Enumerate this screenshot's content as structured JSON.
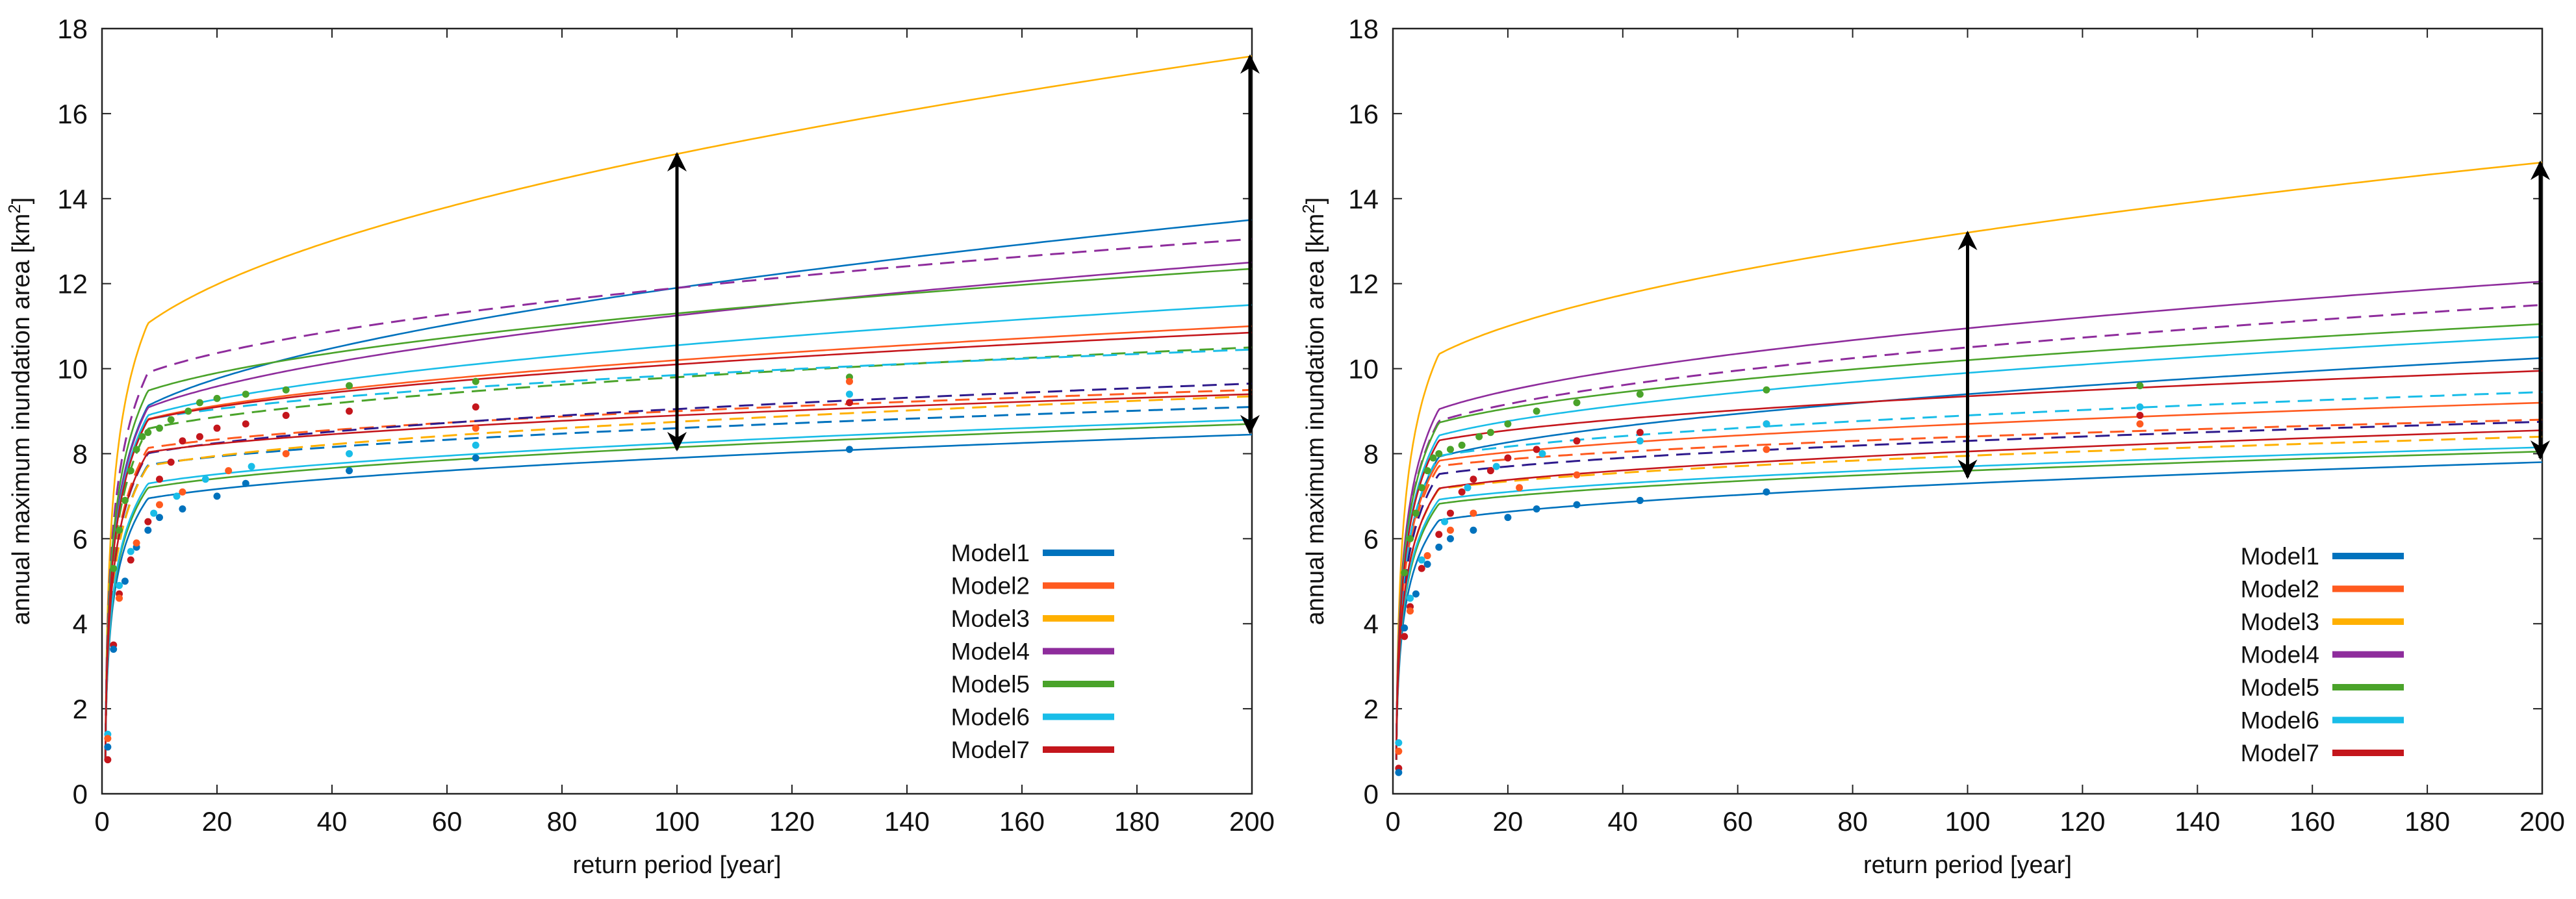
{
  "chart_data": [
    {
      "type": "line",
      "panel": "left",
      "xlabel": "return period [year]",
      "ylabel_main": "annual maximum inundation area [km",
      "ylabel_sup": "2",
      "ylabel_end": "]",
      "xlim": [
        0,
        200
      ],
      "ylim": [
        0,
        18
      ],
      "xticks": [
        "0",
        "20",
        "40",
        "60",
        "80",
        "100",
        "120",
        "140",
        "160",
        "180",
        "200"
      ],
      "yticks": [
        "0",
        "2",
        "4",
        "6",
        "8",
        "10",
        "12",
        "14",
        "16",
        "18"
      ],
      "legend": [
        {
          "label": "Model1",
          "color": "#0072bd"
        },
        {
          "label": "Model2",
          "color": "#ff5a1f"
        },
        {
          "label": "Model3",
          "color": "#ffb000"
        },
        {
          "label": "Model4",
          "color": "#8e2c9c"
        },
        {
          "label": "Model5",
          "color": "#4aa32a"
        },
        {
          "label": "Model6",
          "color": "#19bde8"
        },
        {
          "label": "Model7",
          "color": "#c4161c"
        }
      ],
      "series": [
        {
          "name": "Model1",
          "color": "#0072bd",
          "dash": false,
          "values_at_100_200": [
            11.9,
            13.5
          ]
        },
        {
          "name": "Model1",
          "color": "#0072bd",
          "dash": false,
          "values_at_100_200": [
            7.9,
            8.45
          ]
        },
        {
          "name": "Model1",
          "color": "#0072bd",
          "dash": true,
          "values_at_100_200": [
            8.6,
            9.1
          ]
        },
        {
          "name": "Model2",
          "color": "#ff5a1f",
          "dash": false,
          "values_at_100_200": [
            10.2,
            11.0
          ]
        },
        {
          "name": "Model2",
          "color": "#ff5a1f",
          "dash": true,
          "values_at_100_200": [
            9.0,
            9.5
          ]
        },
        {
          "name": "Model3",
          "color": "#ffb000",
          "dash": false,
          "values_at_100_200": [
            15.05,
            17.35
          ]
        },
        {
          "name": "Model3",
          "color": "#ffb000",
          "dash": true,
          "values_at_100_200": [
            8.75,
            9.35
          ]
        },
        {
          "name": "Model4",
          "color": "#8e2c9c",
          "dash": false,
          "values_at_100_200": [
            11.25,
            12.5
          ]
        },
        {
          "name": "Model4",
          "color": "#8e2c9c",
          "dash": true,
          "values_at_100_200": [
            11.9,
            13.05
          ]
        },
        {
          "name": "Model4",
          "color": "#2e1a8c",
          "dash": true,
          "values_at_100_200": [
            9.05,
            9.65
          ]
        },
        {
          "name": "Model5",
          "color": "#4aa32a",
          "dash": false,
          "values_at_100_200": [
            11.3,
            12.35
          ]
        },
        {
          "name": "Model5",
          "color": "#4aa32a",
          "dash": false,
          "values_at_100_200": [
            8.15,
            8.7
          ]
        },
        {
          "name": "Model5",
          "color": "#4aa32a",
          "dash": true,
          "values_at_100_200": [
            9.8,
            10.5
          ]
        },
        {
          "name": "Model6",
          "color": "#19bde8",
          "dash": false,
          "values_at_100_200": [
            10.55,
            11.5
          ]
        },
        {
          "name": "Model6",
          "color": "#19bde8",
          "dash": false,
          "values_at_100_200": [
            8.25,
            8.8
          ]
        },
        {
          "name": "Model6",
          "color": "#19bde8",
          "dash": true,
          "values_at_100_200": [
            9.85,
            10.45
          ]
        },
        {
          "name": "Model7",
          "color": "#c4161c",
          "dash": false,
          "values_at_100_200": [
            10.1,
            10.85
          ]
        },
        {
          "name": "Model7",
          "color": "#c4161c",
          "dash": false,
          "values_at_100_200": [
            8.9,
            9.4
          ]
        }
      ],
      "observed_points": [
        {
          "color": "#4aa32a",
          "points": [
            [
              2,
              5.3
            ],
            [
              3,
              6.2
            ],
            [
              4,
              6.9
            ],
            [
              5,
              7.6
            ],
            [
              6,
              8.1
            ],
            [
              7,
              8.4
            ],
            [
              8,
              8.5
            ],
            [
              10,
              8.6
            ],
            [
              12,
              8.8
            ],
            [
              15,
              9.0
            ],
            [
              17,
              9.2
            ],
            [
              20,
              9.3
            ],
            [
              25,
              9.4
            ],
            [
              32,
              9.5
            ],
            [
              43,
              9.6
            ],
            [
              65,
              9.7
            ],
            [
              130,
              9.8
            ]
          ]
        },
        {
          "color": "#c4161c",
          "points": [
            [
              1,
              0.8
            ],
            [
              2,
              3.5
            ],
            [
              3,
              4.7
            ],
            [
              5,
              5.5
            ],
            [
              8,
              6.4
            ],
            [
              10,
              7.4
            ],
            [
              12,
              7.8
            ],
            [
              14,
              8.3
            ],
            [
              17,
              8.4
            ],
            [
              20,
              8.6
            ],
            [
              25,
              8.7
            ],
            [
              32,
              8.9
            ],
            [
              43,
              9.0
            ],
            [
              65,
              9.1
            ],
            [
              130,
              9.2
            ]
          ]
        },
        {
          "color": "#0072bd",
          "points": [
            [
              1,
              1.1
            ],
            [
              2,
              3.4
            ],
            [
              4,
              5.0
            ],
            [
              6,
              5.8
            ],
            [
              8,
              6.2
            ],
            [
              10,
              6.5
            ],
            [
              14,
              6.7
            ],
            [
              20,
              7.0
            ],
            [
              25,
              7.3
            ],
            [
              43,
              7.6
            ],
            [
              65,
              7.9
            ],
            [
              130,
              8.1
            ]
          ]
        },
        {
          "color": "#19bde8",
          "points": [
            [
              1,
              1.4
            ],
            [
              3,
              4.9
            ],
            [
              5,
              5.7
            ],
            [
              9,
              6.6
            ],
            [
              13,
              7.0
            ],
            [
              18,
              7.4
            ],
            [
              26,
              7.7
            ],
            [
              43,
              8.0
            ],
            [
              65,
              8.2
            ],
            [
              130,
              9.4
            ]
          ]
        },
        {
          "color": "#ff5a1f",
          "points": [
            [
              1,
              1.3
            ],
            [
              3,
              4.6
            ],
            [
              6,
              5.9
            ],
            [
              10,
              6.8
            ],
            [
              14,
              7.1
            ],
            [
              22,
              7.6
            ],
            [
              32,
              8.0
            ],
            [
              65,
              8.6
            ],
            [
              130,
              9.7
            ]
          ]
        }
      ],
      "annotations": [
        {
          "type": "double-arrow",
          "x": 100,
          "y_range": [
            8.1,
            15.05
          ]
        },
        {
          "type": "double-arrow",
          "x": 200,
          "y_range": [
            8.5,
            17.35
          ]
        }
      ]
    },
    {
      "type": "line",
      "panel": "right",
      "xlabel": "return period [year]",
      "ylabel_main": "annual maximum inundation area [km",
      "ylabel_sup": "2",
      "ylabel_end": "]",
      "xlim": [
        0,
        200
      ],
      "ylim": [
        0,
        18
      ],
      "xticks": [
        "0",
        "20",
        "40",
        "60",
        "80",
        "100",
        "120",
        "140",
        "160",
        "180",
        "200"
      ],
      "yticks": [
        "0",
        "2",
        "4",
        "6",
        "8",
        "10",
        "12",
        "14",
        "16",
        "18"
      ],
      "legend": [
        {
          "label": "Model1",
          "color": "#0072bd"
        },
        {
          "label": "Model2",
          "color": "#ff5a1f"
        },
        {
          "label": "Model3",
          "color": "#ffb000"
        },
        {
          "label": "Model4",
          "color": "#8e2c9c"
        },
        {
          "label": "Model5",
          "color": "#4aa32a"
        },
        {
          "label": "Model6",
          "color": "#19bde8"
        },
        {
          "label": "Model7",
          "color": "#c4161c"
        }
      ],
      "series": [
        {
          "name": "Model1",
          "color": "#0072bd",
          "dash": false,
          "values_at_100_200": [
            9.4,
            10.25
          ]
        },
        {
          "name": "Model1",
          "color": "#0072bd",
          "dash": false,
          "values_at_100_200": [
            7.3,
            7.8
          ]
        },
        {
          "name": "Model2",
          "color": "#ff5a1f",
          "dash": false,
          "values_at_100_200": [
            8.7,
            9.2
          ]
        },
        {
          "name": "Model2",
          "color": "#ff5a1f",
          "dash": true,
          "values_at_100_200": [
            8.4,
            8.8
          ]
        },
        {
          "name": "Model3",
          "color": "#ffb000",
          "dash": false,
          "values_at_100_200": [
            13.2,
            14.85
          ]
        },
        {
          "name": "Model3",
          "color": "#ffb000",
          "dash": true,
          "values_at_100_200": [
            7.95,
            8.4
          ]
        },
        {
          "name": "Model4",
          "color": "#8e2c9c",
          "dash": false,
          "values_at_100_200": [
            10.95,
            12.05
          ]
        },
        {
          "name": "Model4",
          "color": "#8e2c9c",
          "dash": true,
          "values_at_100_200": [
            10.5,
            11.5
          ]
        },
        {
          "name": "Model4",
          "color": "#2e1a8c",
          "dash": true,
          "values_at_100_200": [
            8.3,
            8.75
          ]
        },
        {
          "name": "Model5",
          "color": "#4aa32a",
          "dash": false,
          "values_at_100_200": [
            10.2,
            11.05
          ]
        },
        {
          "name": "Model5",
          "color": "#4aa32a",
          "dash": false,
          "values_at_100_200": [
            7.6,
            8.05
          ]
        },
        {
          "name": "Model6",
          "color": "#19bde8",
          "dash": false,
          "values_at_100_200": [
            9.9,
            10.75
          ]
        },
        {
          "name": "Model6",
          "color": "#19bde8",
          "dash": false,
          "values_at_100_200": [
            7.7,
            8.15
          ]
        },
        {
          "name": "Model6",
          "color": "#19bde8",
          "dash": true,
          "values_at_100_200": [
            8.9,
            9.45
          ]
        },
        {
          "name": "Model7",
          "color": "#c4161c",
          "dash": false,
          "values_at_100_200": [
            9.35,
            9.95
          ]
        },
        {
          "name": "Model7",
          "color": "#c4161c",
          "dash": false,
          "values_at_100_200": [
            8.05,
            8.55
          ]
        }
      ],
      "observed_points": [
        {
          "color": "#4aa32a",
          "points": [
            [
              2,
              5.2
            ],
            [
              3,
              6.0
            ],
            [
              4,
              6.6
            ],
            [
              5,
              7.2
            ],
            [
              6,
              7.6
            ],
            [
              7,
              7.9
            ],
            [
              8,
              8.0
            ],
            [
              10,
              8.1
            ],
            [
              12,
              8.2
            ],
            [
              15,
              8.4
            ],
            [
              17,
              8.5
            ],
            [
              20,
              8.7
            ],
            [
              25,
              9.0
            ],
            [
              32,
              9.2
            ],
            [
              43,
              9.4
            ],
            [
              65,
              9.5
            ],
            [
              130,
              9.6
            ]
          ]
        },
        {
          "color": "#c4161c",
          "points": [
            [
              1,
              0.6
            ],
            [
              2,
              3.7
            ],
            [
              3,
              4.4
            ],
            [
              5,
              5.3
            ],
            [
              8,
              6.1
            ],
            [
              10,
              6.6
            ],
            [
              12,
              7.1
            ],
            [
              14,
              7.4
            ],
            [
              17,
              7.6
            ],
            [
              20,
              7.9
            ],
            [
              25,
              8.1
            ],
            [
              32,
              8.3
            ],
            [
              43,
              8.5
            ],
            [
              65,
              8.7
            ],
            [
              130,
              8.9
            ]
          ]
        },
        {
          "color": "#0072bd",
          "points": [
            [
              1,
              0.5
            ],
            [
              2,
              3.9
            ],
            [
              4,
              4.7
            ],
            [
              6,
              5.4
            ],
            [
              8,
              5.8
            ],
            [
              10,
              6.0
            ],
            [
              14,
              6.2
            ],
            [
              20,
              6.5
            ],
            [
              25,
              6.7
            ],
            [
              32,
              6.8
            ],
            [
              43,
              6.9
            ],
            [
              65,
              7.1
            ]
          ]
        },
        {
          "color": "#19bde8",
          "points": [
            [
              1,
              1.2
            ],
            [
              3,
              4.6
            ],
            [
              5,
              5.5
            ],
            [
              9,
              6.4
            ],
            [
              13,
              7.2
            ],
            [
              18,
              7.7
            ],
            [
              26,
              8.0
            ],
            [
              43,
              8.3
            ],
            [
              65,
              8.7
            ],
            [
              130,
              9.1
            ]
          ]
        },
        {
          "color": "#ff5a1f",
          "points": [
            [
              1,
              1.0
            ],
            [
              3,
              4.3
            ],
            [
              6,
              5.6
            ],
            [
              10,
              6.2
            ],
            [
              14,
              6.6
            ],
            [
              22,
              7.2
            ],
            [
              32,
              7.5
            ],
            [
              65,
              8.1
            ],
            [
              130,
              8.7
            ]
          ]
        }
      ],
      "annotations": [
        {
          "type": "double-arrow",
          "x": 100,
          "y_range": [
            7.45,
            13.2
          ]
        },
        {
          "type": "double-arrow",
          "x": 200,
          "y_range": [
            7.9,
            14.85
          ]
        }
      ]
    }
  ]
}
